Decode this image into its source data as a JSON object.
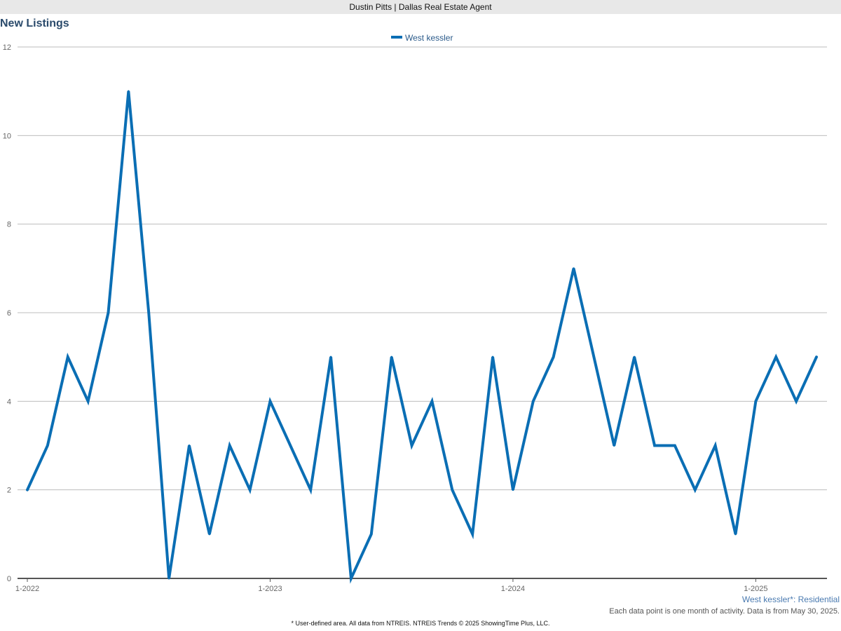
{
  "header": {
    "title": "Dustin Pitts | Dallas Real Estate Agent"
  },
  "footer": {
    "area_label": "West kessler*: Residential",
    "activity_note": "Each data point is one month of activity. Data is from May 30, 2025.",
    "source_note": "* User-defined area. All data from NTREIS. NTREIS Trends © 2025 ShowingTime Plus, LLC."
  },
  "chart_data": {
    "type": "line",
    "title": "New Listings",
    "xlabel": "",
    "ylabel": "",
    "ylim": [
      0,
      12
    ],
    "yticks": [
      0,
      2,
      4,
      6,
      8,
      10,
      12
    ],
    "x": [
      "2022-01",
      "2022-02",
      "2022-03",
      "2022-04",
      "2022-05",
      "2022-06",
      "2022-07",
      "2022-08",
      "2022-09",
      "2022-10",
      "2022-11",
      "2022-12",
      "2023-01",
      "2023-02",
      "2023-03",
      "2023-04",
      "2023-05",
      "2023-06",
      "2023-07",
      "2023-08",
      "2023-09",
      "2023-10",
      "2023-11",
      "2023-12",
      "2024-01",
      "2024-02",
      "2024-03",
      "2024-04",
      "2024-05",
      "2024-06",
      "2024-07",
      "2024-08",
      "2024-09",
      "2024-10",
      "2024-11",
      "2024-12",
      "2025-01",
      "2025-02",
      "2025-03",
      "2025-04"
    ],
    "x_tick_labels": [
      {
        "index": 0,
        "label": "1-2022"
      },
      {
        "index": 12,
        "label": "1-2023"
      },
      {
        "index": 24,
        "label": "1-2024"
      },
      {
        "index": 36,
        "label": "1-2025"
      }
    ],
    "legend_position": "top-center",
    "grid": true,
    "series": [
      {
        "name": "West kessler",
        "color": "#0a6eb4",
        "values": [
          2,
          3,
          5,
          4,
          6,
          11,
          6,
          0,
          3,
          1,
          3,
          2,
          4,
          3,
          2,
          5,
          0,
          1,
          5,
          3,
          4,
          2,
          1,
          5,
          2,
          4,
          5,
          7,
          5,
          3,
          5,
          3,
          3,
          2,
          3,
          1,
          4,
          5,
          4,
          5
        ]
      }
    ]
  }
}
